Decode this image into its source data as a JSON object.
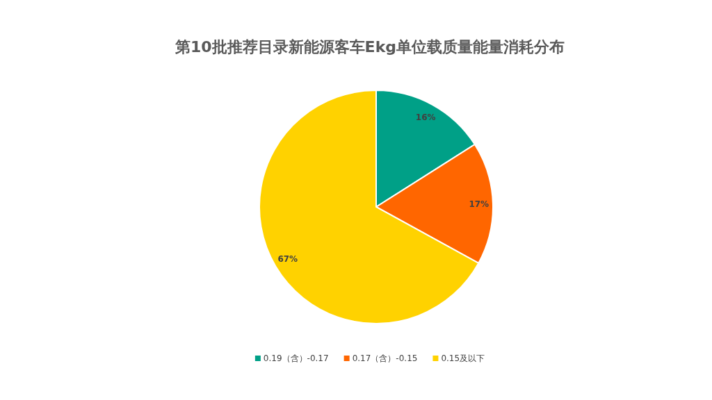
{
  "chart_data": {
    "type": "pie",
    "title": "第10批推荐目录新能源客车Ekg单位载质量能量消耗分布",
    "categories": [
      "0.19（含）-0.17",
      "0.17（含）-0.15",
      "0.15及以下"
    ],
    "values": [
      16,
      17,
      67
    ],
    "colors": [
      "#00a087",
      "#ff6600",
      "#ffd200"
    ],
    "value_labels": [
      "16%",
      "17%",
      "67%"
    ],
    "legend": "bottom"
  }
}
